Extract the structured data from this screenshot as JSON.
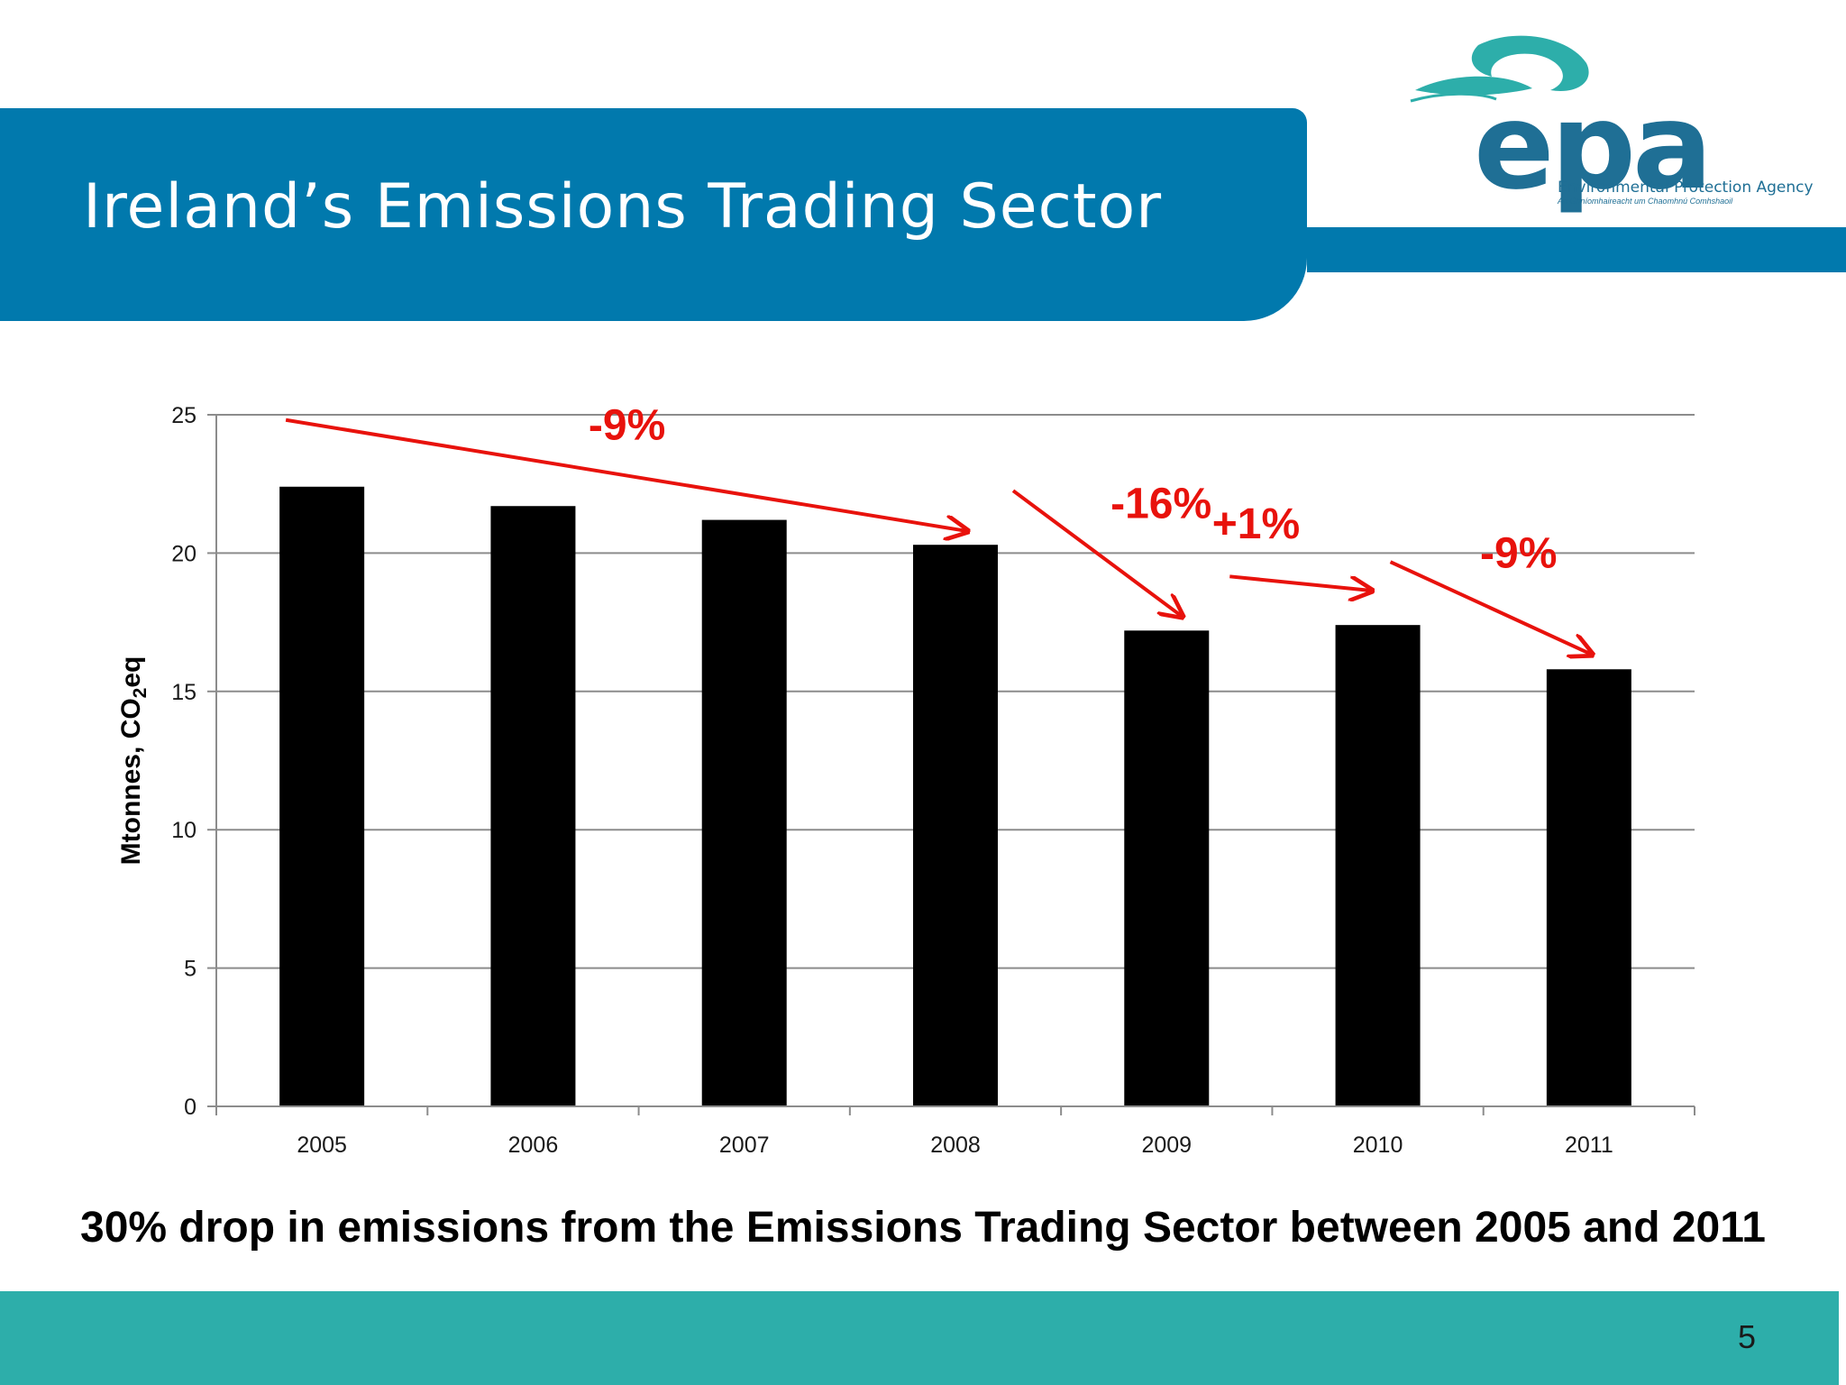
{
  "slide": {
    "title": "Ireland’s Emissions Trading Sector",
    "caption": "30% drop in emissions from the Emissions Trading Sector between 2005 and 2011",
    "page_number": "5",
    "logo": {
      "word": "epa",
      "subtitle": "Environmental Protection Agency",
      "subtitle_irish": "An Ghníomhaireacht um Chaomhnú Comhshaoil"
    }
  },
  "colors": {
    "title_band": "#0179ad",
    "footer_band": "#2daeaa",
    "bars": "#000000",
    "annotation": "#e8120c"
  },
  "chart_data": {
    "type": "bar",
    "categories": [
      "2005",
      "2006",
      "2007",
      "2008",
      "2009",
      "2010",
      "2011"
    ],
    "values": [
      22.4,
      21.7,
      21.2,
      20.3,
      17.2,
      17.4,
      15.8
    ],
    "ylim": [
      0,
      25
    ],
    "yticks": [
      "0",
      "5",
      "10",
      "15",
      "20",
      "25"
    ],
    "ytick_values": [
      0,
      5,
      10,
      15,
      20,
      25
    ],
    "ylabel": "Mtonnes, CO2eq",
    "ylabel_parts": {
      "before": "Mtonnes, CO",
      "sub": "2",
      "after": "eq"
    },
    "xlabel": "",
    "grid": true,
    "legend": false,
    "annotations": [
      {
        "text": "-9%",
        "from_category": "2005",
        "to_category": "2008"
      },
      {
        "text": "-16%",
        "from_category": "2008",
        "to_category": "2009"
      },
      {
        "text": "+1%",
        "from_category": "2009",
        "to_category": "2010"
      },
      {
        "text": "-9%",
        "from_category": "2010",
        "to_category": "2011"
      }
    ]
  }
}
